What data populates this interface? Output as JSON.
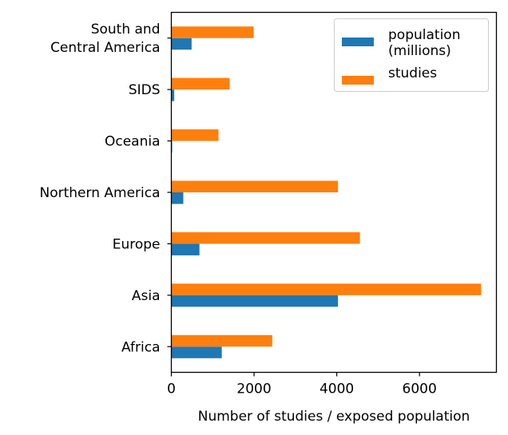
{
  "chart_data": {
    "type": "bar",
    "orientation": "horizontal",
    "categories": [
      "Africa",
      "Asia",
      "Europe",
      "Northern America",
      "Oceania",
      "SIDS",
      "South and Central America"
    ],
    "category_label_lines": [
      [
        "Africa"
      ],
      [
        "Asia"
      ],
      [
        "Europe"
      ],
      [
        "Northern America"
      ],
      [
        "Oceania"
      ],
      [
        "SIDS"
      ],
      [
        "South and",
        "Central America"
      ]
    ],
    "series": [
      {
        "name": "population (millions)",
        "legend_lines": [
          "population",
          "(millions)"
        ],
        "color": "#1f77b4",
        "values": [
          1220,
          4030,
          680,
          290,
          20,
          70,
          490
        ]
      },
      {
        "name": "studies",
        "legend_lines": [
          "studies"
        ],
        "color": "#ff7f0e",
        "values": [
          2440,
          7490,
          4560,
          4030,
          1140,
          1410,
          1990
        ]
      }
    ],
    "title": "",
    "xlabel": "Number of studies / exposed population",
    "ylabel": "",
    "xlim": [
      0,
      7860
    ],
    "xticks": [
      0,
      2000,
      4000,
      6000
    ],
    "xtick_labels": [
      "0",
      "2000",
      "4000",
      "6000"
    ],
    "grid": false,
    "legend_position": "top-right"
  }
}
